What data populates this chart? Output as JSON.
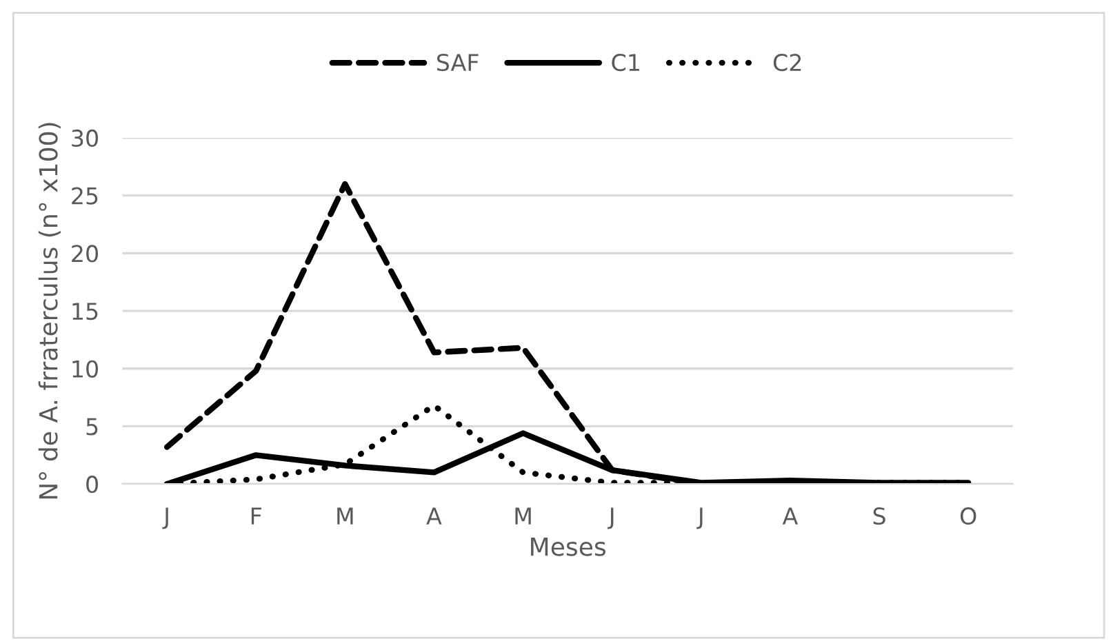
{
  "chart_data": {
    "type": "line",
    "xlabel": "Meses",
    "ylabel": "N° de A. frraterculus (n° x100)",
    "categories": [
      "J",
      "F",
      "M",
      "A",
      "M",
      "J",
      "J",
      "A",
      "S",
      "O"
    ],
    "series": [
      {
        "name": "SAF",
        "color": "#000000",
        "line_style": "dashed",
        "values": [
          3.2,
          9.8,
          26,
          11.4,
          11.8,
          1.2,
          0,
          0,
          0,
          0
        ]
      },
      {
        "name": "C1",
        "color": "#000000",
        "line_style": "solid",
        "values": [
          0,
          2.5,
          1.6,
          1.0,
          4.4,
          1.2,
          0.1,
          0.3,
          0.1,
          0.1
        ]
      },
      {
        "name": "C2",
        "color": "#000000",
        "line_style": "dotted",
        "values": [
          0,
          0.4,
          1.7,
          6.8,
          1.0,
          0.1,
          0.1,
          0.1,
          0.1,
          0.1
        ]
      }
    ],
    "ylim": [
      0,
      30
    ],
    "yticks": [
      0,
      5,
      10,
      15,
      20,
      25,
      30
    ],
    "grid": "y",
    "legend": "top",
    "marker": "none"
  }
}
